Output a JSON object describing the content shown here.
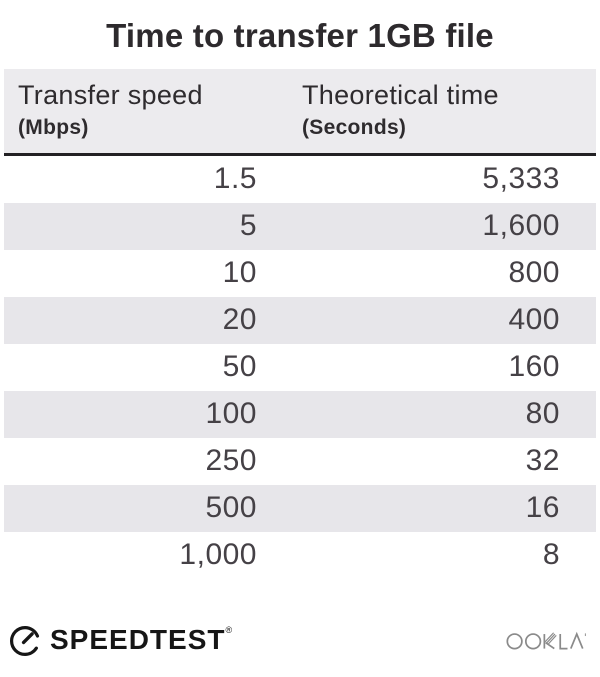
{
  "title": "Time to transfer 1GB file",
  "table": {
    "columns": [
      {
        "label": "Transfer speed",
        "unit": "(Mbps)"
      },
      {
        "label": "Theoretical time",
        "unit": "(Seconds)"
      }
    ],
    "rows": [
      {
        "speed": "1.5",
        "time": "5,333"
      },
      {
        "speed": "5",
        "time": "1,600"
      },
      {
        "speed": "10",
        "time": "800"
      },
      {
        "speed": "20",
        "time": "400"
      },
      {
        "speed": "50",
        "time": "160"
      },
      {
        "speed": "100",
        "time": "80"
      },
      {
        "speed": "250",
        "time": "32"
      },
      {
        "speed": "500",
        "time": "16"
      },
      {
        "speed": "1,000",
        "time": "8"
      }
    ]
  },
  "footer": {
    "speedtest_label": "SPEEDTEST",
    "registered_mark": "®",
    "ookla_label": "OOKLA"
  },
  "colors": {
    "header_bg": "#ecebee",
    "row_stripe": "#e7e6ea",
    "header_border": "#232124",
    "title_text": "#2d2a2d",
    "number_text": "#454146",
    "speedtest_black": "#161616",
    "ookla_gray": "#8a8a8a"
  },
  "chart_data": {
    "type": "table",
    "title": "Time to transfer 1GB file",
    "columns": [
      "Transfer speed (Mbps)",
      "Theoretical time (Seconds)"
    ],
    "rows": [
      [
        1.5,
        5333
      ],
      [
        5,
        1600
      ],
      [
        10,
        800
      ],
      [
        20,
        400
      ],
      [
        50,
        160
      ],
      [
        100,
        80
      ],
      [
        250,
        32
      ],
      [
        500,
        16
      ],
      [
        1000,
        8
      ]
    ]
  }
}
